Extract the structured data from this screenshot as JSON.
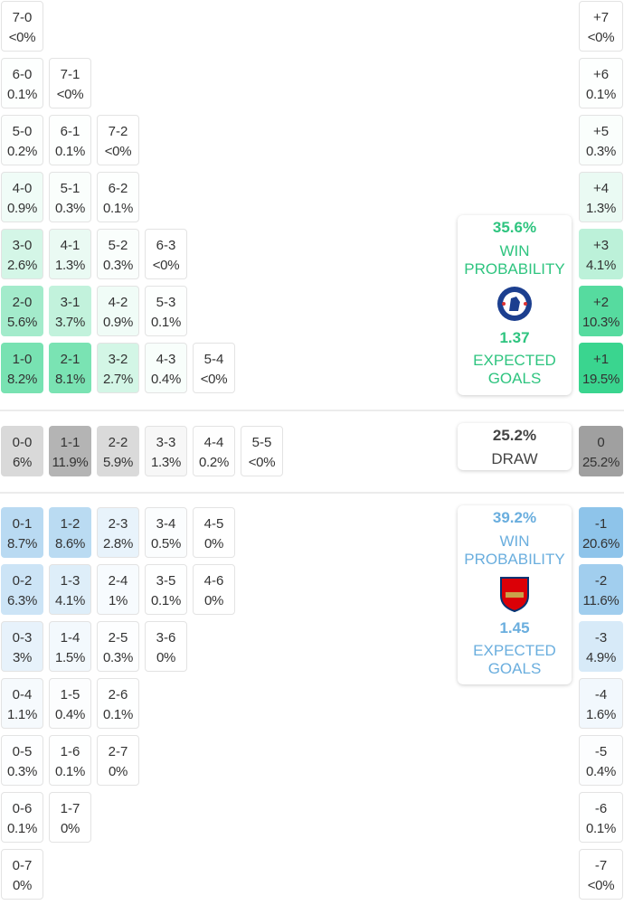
{
  "colors": {
    "home": "#2ec47f",
    "away": "#6aaede",
    "draw_text": "#444444"
  },
  "home": {
    "team": "Chelsea",
    "win_pct": "35.6%",
    "win_label_1": "WIN",
    "win_label_2": "PROBABILITY",
    "xg": "1.37",
    "xg_label_1": "EXPECTED",
    "xg_label_2": "GOALS",
    "rows": [
      [
        [
          "7-0",
          "<0%"
        ]
      ],
      [
        [
          "6-0",
          "0.1%"
        ],
        [
          "7-1",
          "<0%"
        ]
      ],
      [
        [
          "5-0",
          "0.2%"
        ],
        [
          "6-1",
          "0.1%"
        ],
        [
          "7-2",
          "<0%"
        ]
      ],
      [
        [
          "4-0",
          "0.9%"
        ],
        [
          "5-1",
          "0.3%"
        ],
        [
          "6-2",
          "0.1%"
        ]
      ],
      [
        [
          "3-0",
          "2.6%"
        ],
        [
          "4-1",
          "1.3%"
        ],
        [
          "5-2",
          "0.3%"
        ],
        [
          "6-3",
          "<0%"
        ]
      ],
      [
        [
          "2-0",
          "5.6%"
        ],
        [
          "3-1",
          "3.7%"
        ],
        [
          "4-2",
          "0.9%"
        ],
        [
          "5-3",
          "0.1%"
        ]
      ],
      [
        [
          "1-0",
          "8.2%"
        ],
        [
          "2-1",
          "8.1%"
        ],
        [
          "3-2",
          "2.7%"
        ],
        [
          "4-3",
          "0.4%"
        ],
        [
          "5-4",
          "<0%"
        ]
      ]
    ],
    "margins": [
      [
        "+7",
        "<0%"
      ],
      [
        "+6",
        "0.1%"
      ],
      [
        "+5",
        "0.3%"
      ],
      [
        "+4",
        "1.3%"
      ],
      [
        "+3",
        "4.1%"
      ],
      [
        "+2",
        "10.3%"
      ],
      [
        "+1",
        "19.5%"
      ]
    ]
  },
  "draw": {
    "pct": "25.2%",
    "label": "DRAW",
    "cells": [
      [
        "0-0",
        "6%"
      ],
      [
        "1-1",
        "11.9%"
      ],
      [
        "2-2",
        "5.9%"
      ],
      [
        "3-3",
        "1.3%"
      ],
      [
        "4-4",
        "0.2%"
      ],
      [
        "5-5",
        "<0%"
      ]
    ],
    "margin": [
      "0",
      "25.2%"
    ]
  },
  "away": {
    "team": "Arsenal",
    "win_pct": "39.2%",
    "win_label_1": "WIN",
    "win_label_2": "PROBABILITY",
    "xg": "1.45",
    "xg_label_1": "EXPECTED",
    "xg_label_2": "GOALS",
    "rows": [
      [
        [
          "0-1",
          "8.7%"
        ],
        [
          "1-2",
          "8.6%"
        ],
        [
          "2-3",
          "2.8%"
        ],
        [
          "3-4",
          "0.5%"
        ],
        [
          "4-5",
          "0%"
        ]
      ],
      [
        [
          "0-2",
          "6.3%"
        ],
        [
          "1-3",
          "4.1%"
        ],
        [
          "2-4",
          "1%"
        ],
        [
          "3-5",
          "0.1%"
        ],
        [
          "4-6",
          "0%"
        ]
      ],
      [
        [
          "0-3",
          "3%"
        ],
        [
          "1-4",
          "1.5%"
        ],
        [
          "2-5",
          "0.3%"
        ],
        [
          "3-6",
          "0%"
        ]
      ],
      [
        [
          "0-4",
          "1.1%"
        ],
        [
          "1-5",
          "0.4%"
        ],
        [
          "2-6",
          "0.1%"
        ]
      ],
      [
        [
          "0-5",
          "0.3%"
        ],
        [
          "1-6",
          "0.1%"
        ],
        [
          "2-7",
          "0%"
        ]
      ],
      [
        [
          "0-6",
          "0.1%"
        ],
        [
          "1-7",
          "0%"
        ]
      ],
      [
        [
          "0-7",
          "0%"
        ]
      ]
    ],
    "margins": [
      [
        "-1",
        "20.6%"
      ],
      [
        "-2",
        "11.6%"
      ],
      [
        "-3",
        "4.9%"
      ],
      [
        "-4",
        "1.6%"
      ],
      [
        "-5",
        "0.4%"
      ],
      [
        "-6",
        "0.1%"
      ],
      [
        "-7",
        "<0%"
      ]
    ]
  }
}
